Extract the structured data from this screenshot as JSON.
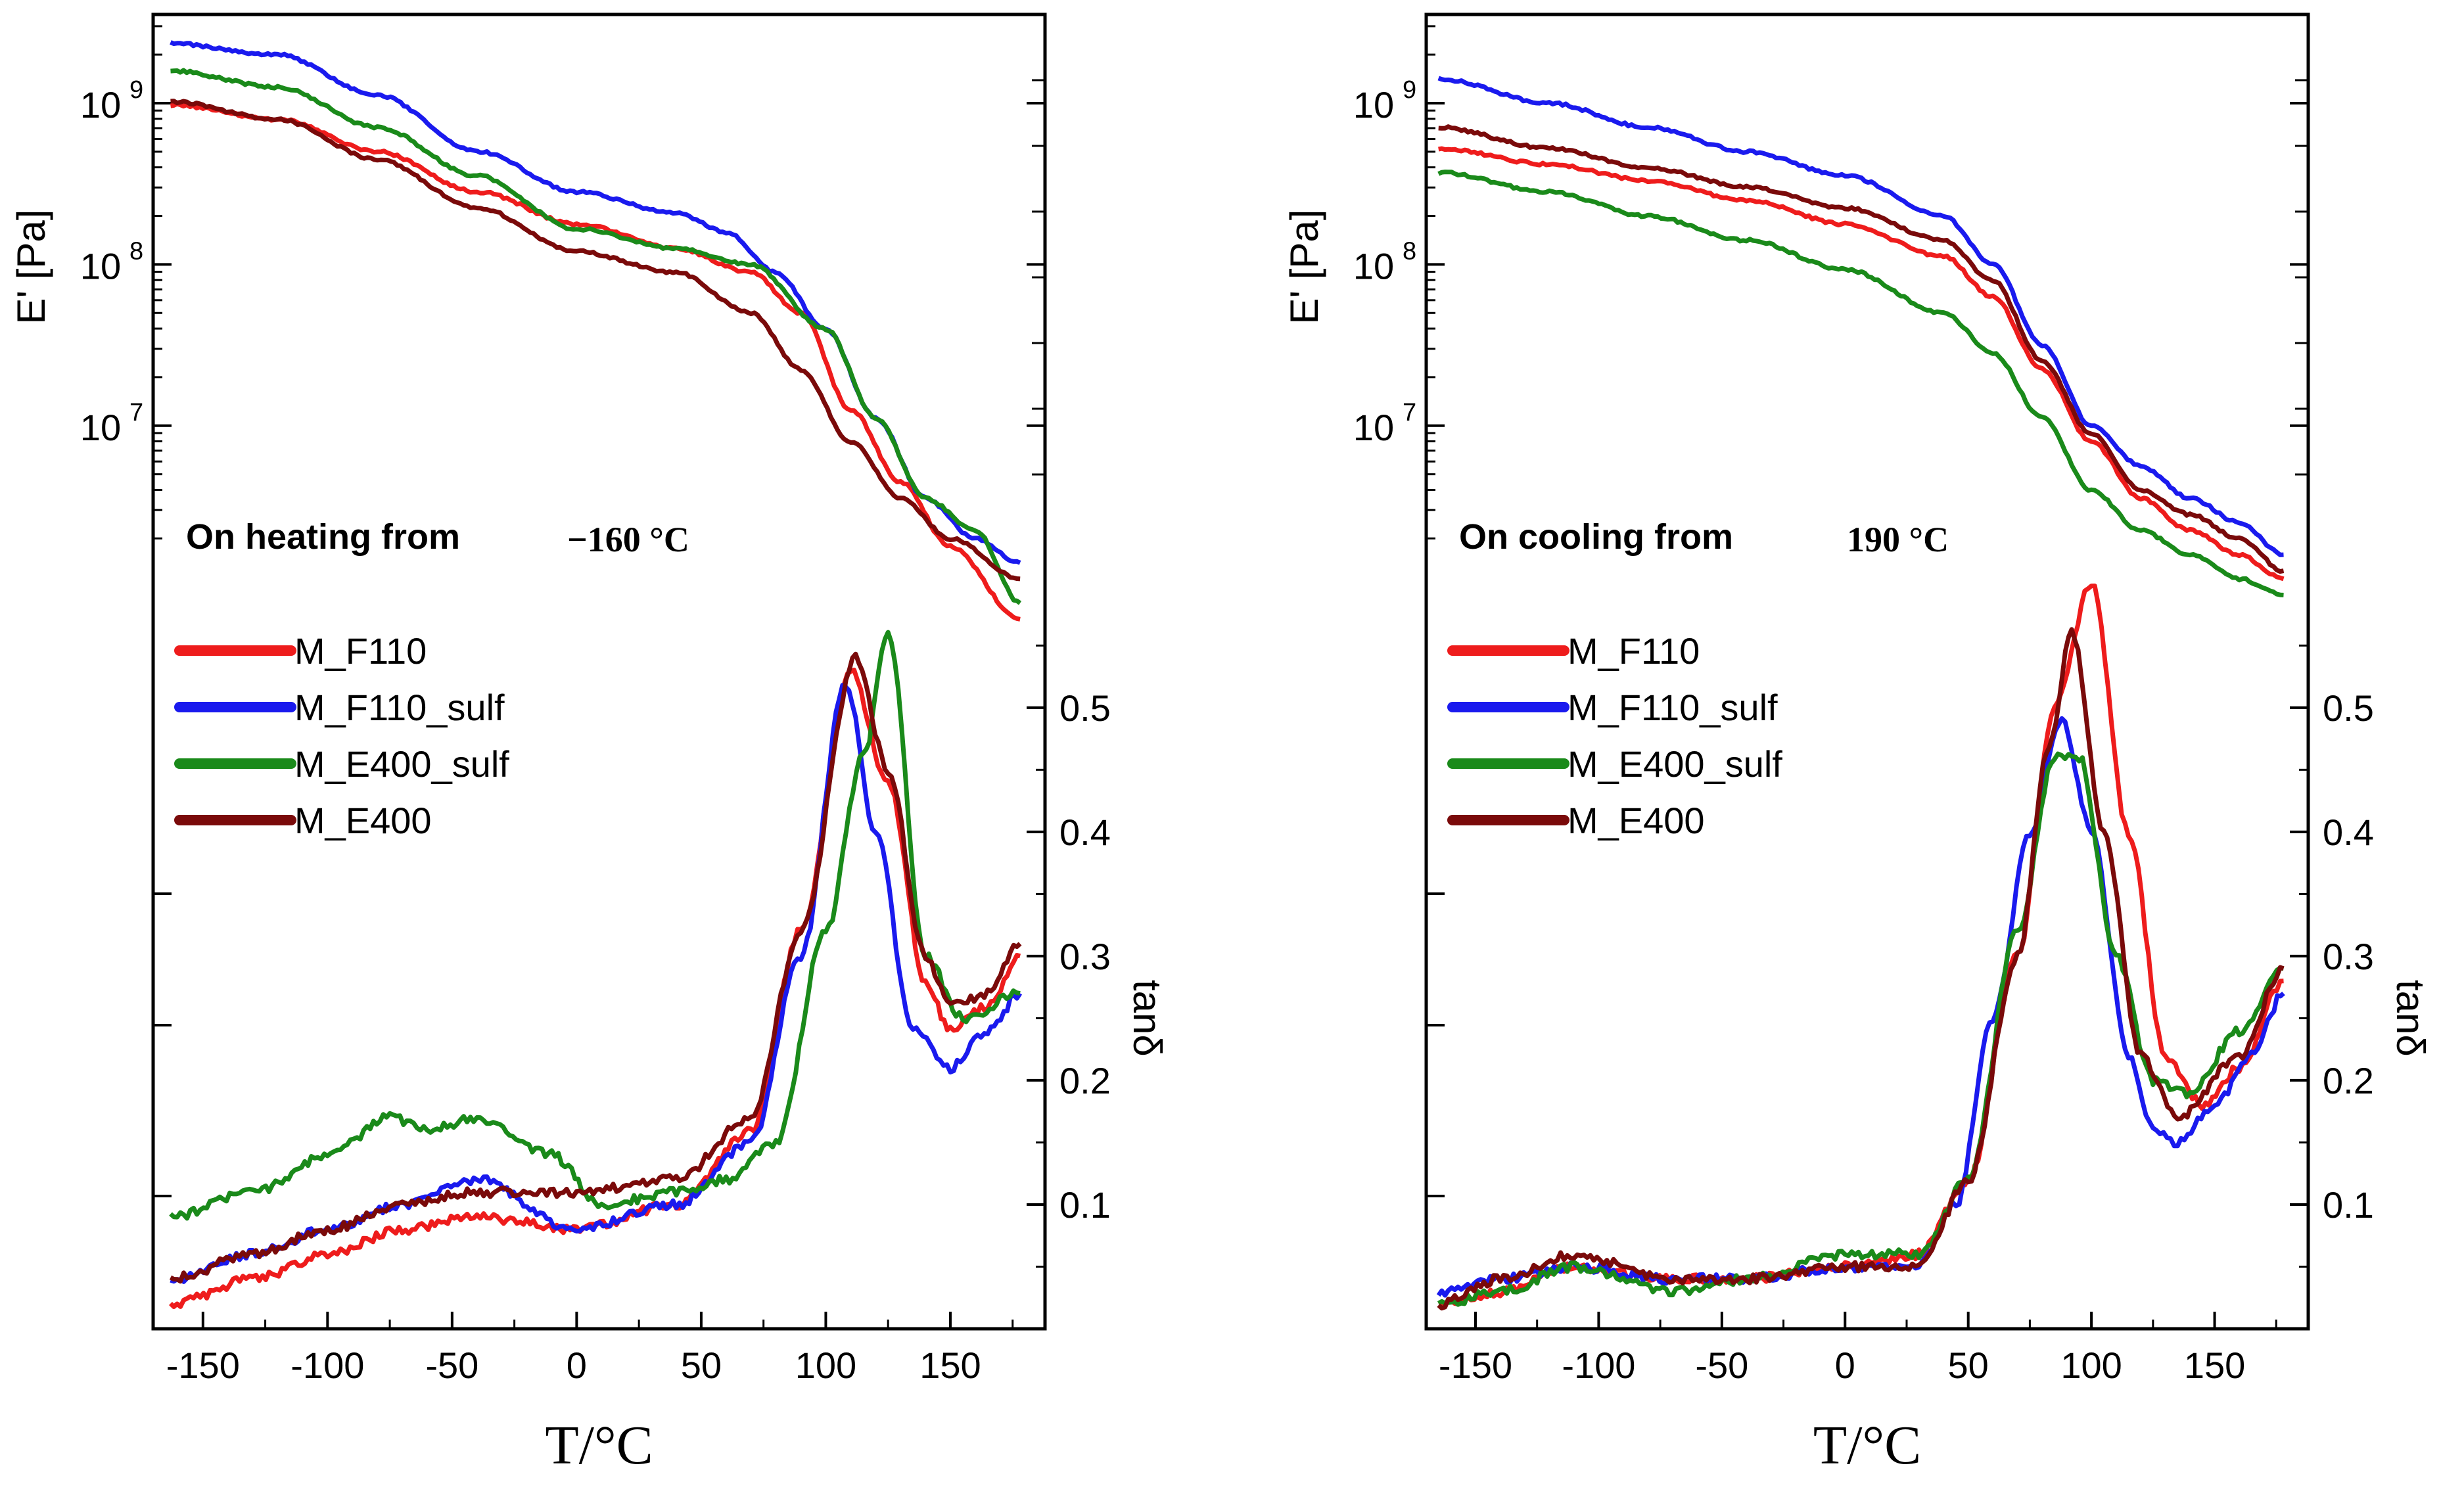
{
  "chart_data": [
    {
      "type": "line",
      "annotation": "On heating from",
      "annotation_temp": "−160 °C",
      "xlabel": "T/°C",
      "ylabel_left": "E' [Pa]",
      "ylabel_right": "tanδ",
      "xlim": [
        -170,
        188
      ],
      "x_ticks": [
        "-150",
        "-100",
        "-50",
        "0",
        "50",
        "100",
        "150"
      ],
      "y_left_ticks": [
        "10",
        "10",
        "10"
      ],
      "y_left_exps": [
        "9",
        "8",
        "7"
      ],
      "y_right_ticks": [
        "0.5",
        "0.4",
        "0.3",
        "0.2",
        "0.1"
      ],
      "legend": [
        "M_F110",
        "M_F110_sulf",
        "M_E400_sulf",
        "M_E400"
      ],
      "colors": [
        "#ee1c1c",
        "#1a1aee",
        "#1a8a1a",
        "#7a0a0a"
      ],
      "modulus_series": [
        {
          "name": "M_F110",
          "x": [
            -163,
            -120,
            -80,
            -40,
            0,
            40,
            70,
            90,
            110,
            130,
            150,
            178
          ],
          "logE": [
            8.99,
            8.9,
            8.7,
            8.45,
            8.25,
            8.1,
            7.95,
            7.7,
            7.1,
            6.65,
            6.25,
            5.8
          ]
        },
        {
          "name": "M_F110_sulf",
          "x": [
            -163,
            -120,
            -80,
            -40,
            0,
            40,
            60,
            80,
            100,
            120,
            140,
            160,
            178
          ],
          "logE": [
            9.37,
            9.3,
            9.05,
            8.7,
            8.45,
            8.32,
            8.2,
            7.95,
            7.6,
            7.05,
            6.55,
            6.3,
            6.15
          ]
        },
        {
          "name": "M_E400_sulf",
          "x": [
            -163,
            -120,
            -80,
            -40,
            0,
            40,
            70,
            100,
            120,
            140,
            160,
            178
          ],
          "logE": [
            9.2,
            9.1,
            8.85,
            8.55,
            8.22,
            8.1,
            8.0,
            7.6,
            7.05,
            6.55,
            6.35,
            5.9
          ]
        },
        {
          "name": "M_E400",
          "x": [
            -163,
            -120,
            -80,
            -40,
            0,
            40,
            70,
            90,
            110,
            130,
            150,
            178
          ],
          "logE": [
            9.01,
            8.9,
            8.65,
            8.35,
            8.08,
            7.95,
            7.7,
            7.35,
            6.9,
            6.55,
            6.3,
            6.05
          ]
        }
      ],
      "tan_series": [
        {
          "name": "M_F110",
          "x": [
            -163,
            -130,
            -100,
            -70,
            -40,
            0,
            40,
            70,
            90,
            110,
            125,
            140,
            150,
            165,
            178
          ],
          "tan": [
            0.02,
            0.04,
            0.06,
            0.08,
            0.09,
            0.08,
            0.1,
            0.16,
            0.32,
            0.53,
            0.44,
            0.28,
            0.24,
            0.26,
            0.3
          ]
        },
        {
          "name": "M_F110_sulf",
          "x": [
            -163,
            -130,
            -100,
            -70,
            -40,
            0,
            40,
            70,
            90,
            108,
            120,
            135,
            150,
            165,
            178
          ],
          "tan": [
            0.04,
            0.06,
            0.08,
            0.1,
            0.12,
            0.08,
            0.1,
            0.15,
            0.3,
            0.52,
            0.4,
            0.24,
            0.21,
            0.24,
            0.27
          ]
        },
        {
          "name": "M_E400_sulf",
          "x": [
            -163,
            -130,
            -100,
            -75,
            -60,
            -40,
            -10,
            10,
            40,
            60,
            80,
            100,
            115,
            125,
            140,
            155,
            178
          ],
          "tan": [
            0.09,
            0.11,
            0.14,
            0.17,
            0.16,
            0.17,
            0.14,
            0.1,
            0.11,
            0.12,
            0.15,
            0.32,
            0.46,
            0.56,
            0.3,
            0.25,
            0.27
          ]
        },
        {
          "name": "M_E400",
          "x": [
            -163,
            -130,
            -100,
            -70,
            -40,
            0,
            40,
            70,
            90,
            112,
            125,
            140,
            150,
            165,
            178
          ],
          "tan": [
            0.04,
            0.06,
            0.08,
            0.1,
            0.11,
            0.11,
            0.12,
            0.17,
            0.32,
            0.54,
            0.45,
            0.3,
            0.26,
            0.27,
            0.31
          ]
        }
      ]
    },
    {
      "type": "line",
      "annotation": "On cooling from",
      "annotation_temp": "190 °C",
      "xlabel": "T/°C",
      "ylabel_left": "E' [Pa]",
      "ylabel_right": "tanδ",
      "xlim": [
        -170,
        188
      ],
      "x_ticks": [
        "-150",
        "-100",
        "-50",
        "0",
        "50",
        "100",
        "150"
      ],
      "y_left_ticks": [
        "10",
        "10",
        "10"
      ],
      "y_left_exps": [
        "9",
        "8",
        "7"
      ],
      "y_right_ticks": [
        "0.5",
        "0.4",
        "0.3",
        "0.2",
        "0.1"
      ],
      "legend": [
        "M_F110",
        "M_F110_sulf",
        "M_E400_sulf",
        "M_E400"
      ],
      "colors": [
        "#ee1c1c",
        "#1a1aee",
        "#1a8a1a",
        "#7a0a0a"
      ],
      "modulus_series": [
        {
          "name": "M_F110",
          "x": [
            -165,
            -120,
            -80,
            -40,
            0,
            40,
            60,
            80,
            100,
            120,
            140,
            160,
            178
          ],
          "logE": [
            8.72,
            8.62,
            8.52,
            8.4,
            8.25,
            8.05,
            7.8,
            7.35,
            6.9,
            6.55,
            6.35,
            6.2,
            6.05
          ]
        },
        {
          "name": "M_F110_sulf",
          "x": [
            -165,
            -120,
            -80,
            -40,
            0,
            40,
            60,
            80,
            100,
            120,
            140,
            160,
            178
          ],
          "logE": [
            9.15,
            9.0,
            8.85,
            8.7,
            8.55,
            8.3,
            8.0,
            7.5,
            7.0,
            6.75,
            6.55,
            6.4,
            6.2
          ]
        },
        {
          "name": "M_E400_sulf",
          "x": [
            -165,
            -120,
            -80,
            -40,
            0,
            40,
            60,
            80,
            100,
            120,
            140,
            160,
            178
          ],
          "logE": [
            8.57,
            8.45,
            8.3,
            8.15,
            7.97,
            7.7,
            7.45,
            7.05,
            6.6,
            6.35,
            6.2,
            6.05,
            5.95
          ]
        },
        {
          "name": "M_E400",
          "x": [
            -165,
            -120,
            -80,
            -40,
            0,
            40,
            60,
            80,
            100,
            120,
            140,
            160,
            178
          ],
          "logE": [
            8.85,
            8.72,
            8.6,
            8.48,
            8.35,
            8.15,
            7.9,
            7.4,
            6.95,
            6.6,
            6.45,
            6.3,
            6.1
          ]
        }
      ],
      "tan_series": [
        {
          "name": "M_F110",
          "x": [
            -165,
            -140,
            -110,
            -70,
            -40,
            0,
            30,
            50,
            70,
            85,
            100,
            115,
            130,
            145,
            160,
            178
          ],
          "tan": [
            0.02,
            0.03,
            0.05,
            0.04,
            0.04,
            0.05,
            0.06,
            0.12,
            0.3,
            0.5,
            0.6,
            0.4,
            0.22,
            0.18,
            0.21,
            0.28
          ]
        },
        {
          "name": "M_F110_sulf",
          "x": [
            -165,
            -140,
            -110,
            -70,
            -40,
            0,
            30,
            45,
            60,
            75,
            88,
            100,
            115,
            125,
            135,
            150,
            165,
            178
          ],
          "tan": [
            0.03,
            0.04,
            0.05,
            0.04,
            0.04,
            0.05,
            0.05,
            0.1,
            0.25,
            0.4,
            0.49,
            0.4,
            0.22,
            0.16,
            0.15,
            0.18,
            0.22,
            0.27
          ]
        },
        {
          "name": "M_E400_sulf",
          "x": [
            -165,
            -140,
            -110,
            -70,
            -40,
            0,
            30,
            50,
            70,
            85,
            95,
            110,
            125,
            140,
            160,
            178
          ],
          "tan": [
            0.02,
            0.03,
            0.05,
            0.03,
            0.04,
            0.06,
            0.06,
            0.12,
            0.32,
            0.46,
            0.46,
            0.3,
            0.2,
            0.19,
            0.24,
            0.29
          ]
        },
        {
          "name": "M_E400",
          "x": [
            -165,
            -140,
            -110,
            -70,
            -40,
            0,
            30,
            50,
            70,
            83,
            92,
            105,
            120,
            135,
            160,
            178
          ],
          "tan": [
            0.02,
            0.04,
            0.06,
            0.04,
            0.04,
            0.05,
            0.05,
            0.12,
            0.3,
            0.47,
            0.56,
            0.4,
            0.22,
            0.17,
            0.22,
            0.29
          ]
        }
      ]
    }
  ]
}
